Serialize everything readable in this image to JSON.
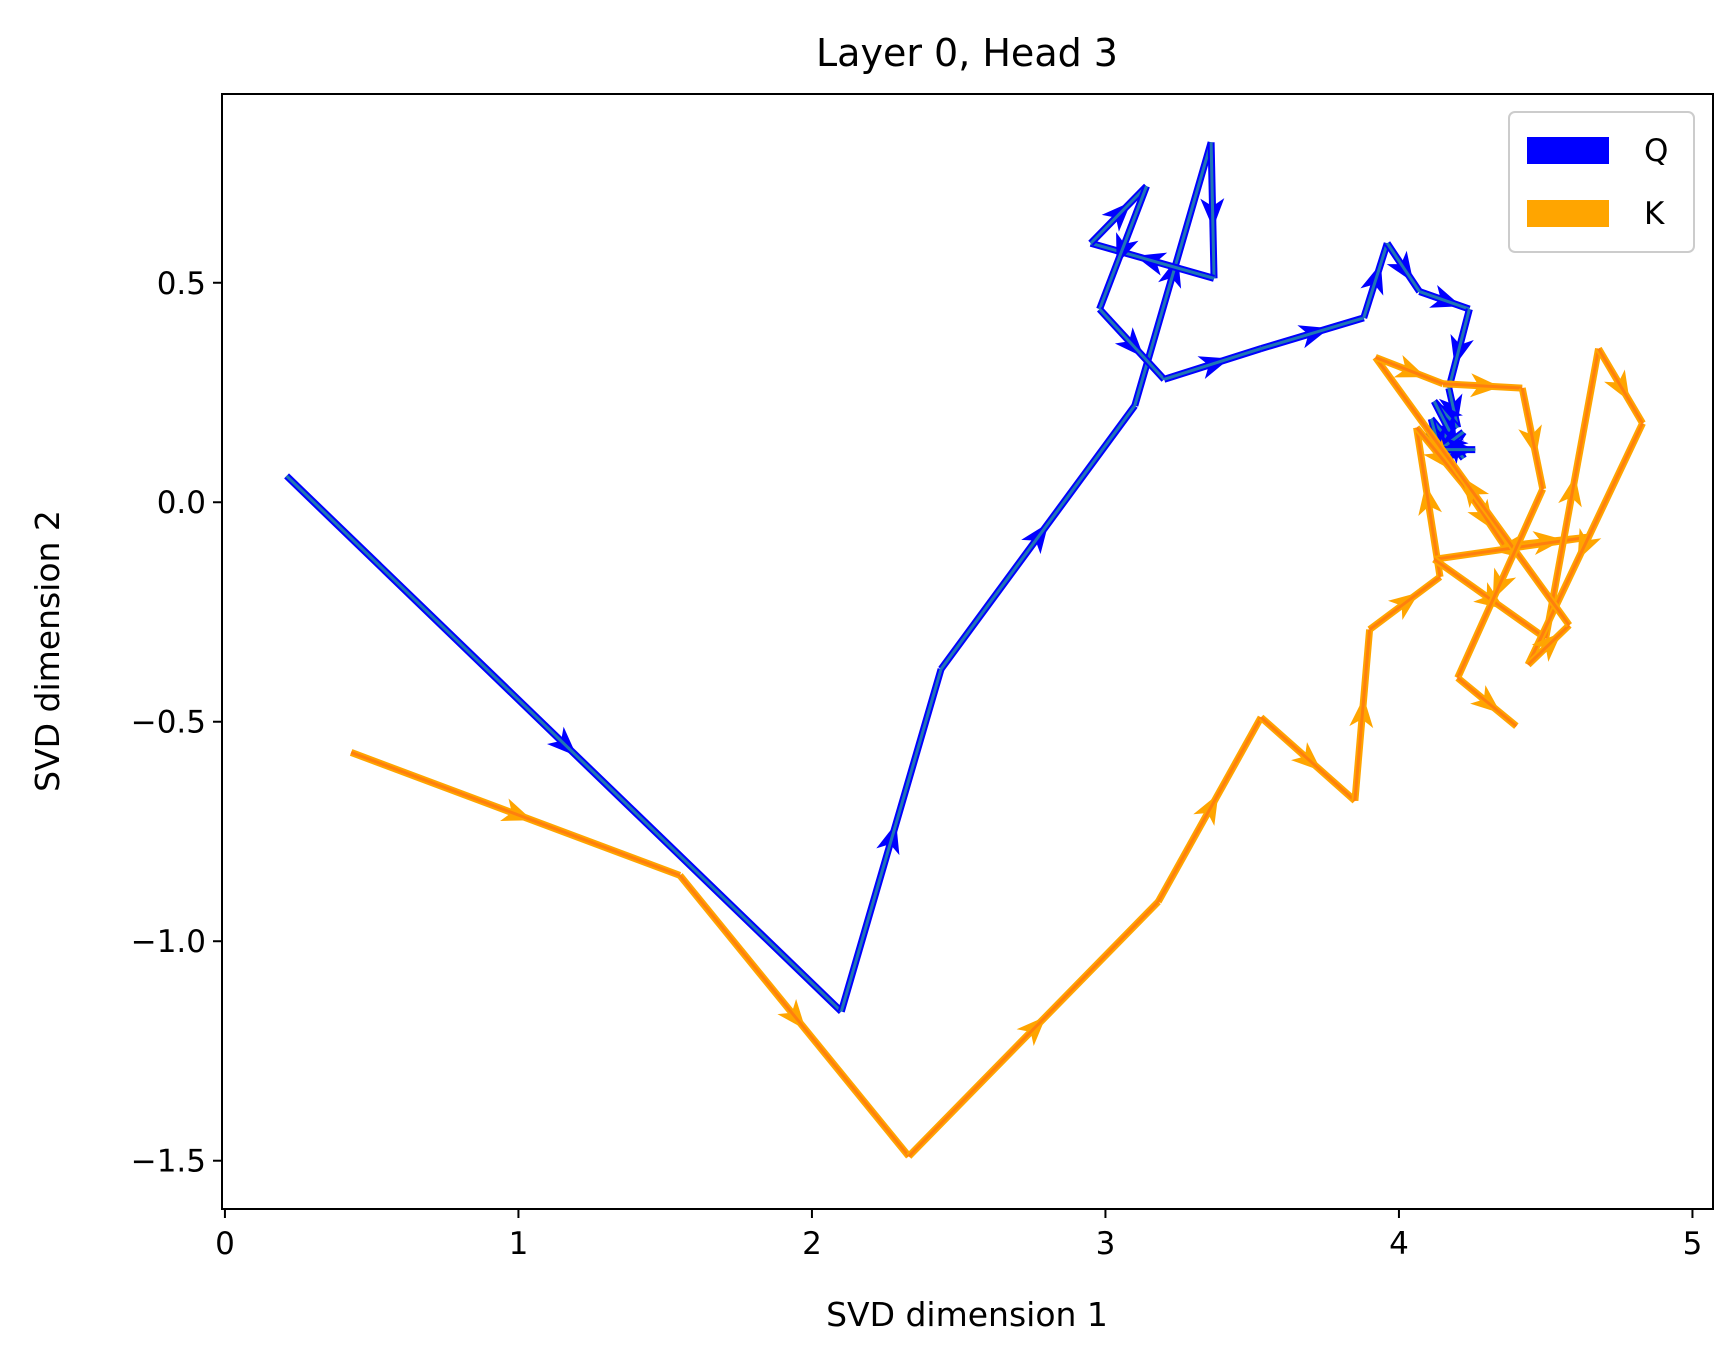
{
  "chart_data": {
    "type": "line",
    "title": "Layer 0, Head 3",
    "xlabel": "SVD dimension 1",
    "ylabel": "SVD dimension 2",
    "xlim": [
      -0.01,
      5.07
    ],
    "ylim": [
      -1.61,
      0.93
    ],
    "xticks": [
      0,
      1,
      2,
      3,
      4,
      5
    ],
    "xtick_labels": [
      "0",
      "1",
      "2",
      "3",
      "4",
      "5"
    ],
    "yticks": [
      0.5,
      0.0,
      -0.5,
      -1.0,
      -1.5
    ],
    "ytick_labels": [
      "0.5",
      "0.0",
      "−0.5",
      "−1.0",
      "−1.5"
    ],
    "grid": false,
    "legend_position": "top-right",
    "series": [
      {
        "name": "Q",
        "color": "#0000ff",
        "line_color": "#1f77b4",
        "x": [
          0.21,
          2.1,
          2.44,
          3.1,
          3.36,
          3.37,
          2.95,
          3.14,
          2.98,
          3.2,
          3.53,
          3.88,
          3.96,
          4.07,
          4.24,
          4.17,
          4.2,
          4.12,
          4.22,
          4.11,
          4.15,
          4.22,
          4.14,
          4.26
        ],
        "y": [
          0.06,
          -1.16,
          -0.38,
          0.22,
          0.82,
          0.51,
          0.59,
          0.72,
          0.44,
          0.28,
          0.35,
          0.42,
          0.59,
          0.48,
          0.44,
          0.26,
          0.17,
          0.23,
          0.1,
          0.19,
          0.09,
          0.16,
          0.12,
          0.12
        ]
      },
      {
        "name": "K",
        "color": "#ffa500",
        "line_color": "#ff7f0e",
        "x": [
          0.43,
          1.55,
          2.33,
          3.18,
          3.53,
          3.85,
          3.9,
          4.14,
          4.06,
          4.22,
          4.36,
          4.64,
          4.12,
          4.5,
          4.68,
          4.83,
          4.44,
          4.58,
          3.92,
          4.15,
          4.42,
          4.49,
          4.2,
          4.4
        ],
        "y": [
          -0.57,
          -0.85,
          -1.49,
          -0.91,
          -0.49,
          -0.68,
          -0.29,
          -0.17,
          0.17,
          0.04,
          -0.1,
          -0.08,
          -0.13,
          -0.31,
          0.35,
          0.18,
          -0.37,
          -0.28,
          0.33,
          0.27,
          0.26,
          0.03,
          -0.4,
          -0.51
        ]
      }
    ]
  }
}
